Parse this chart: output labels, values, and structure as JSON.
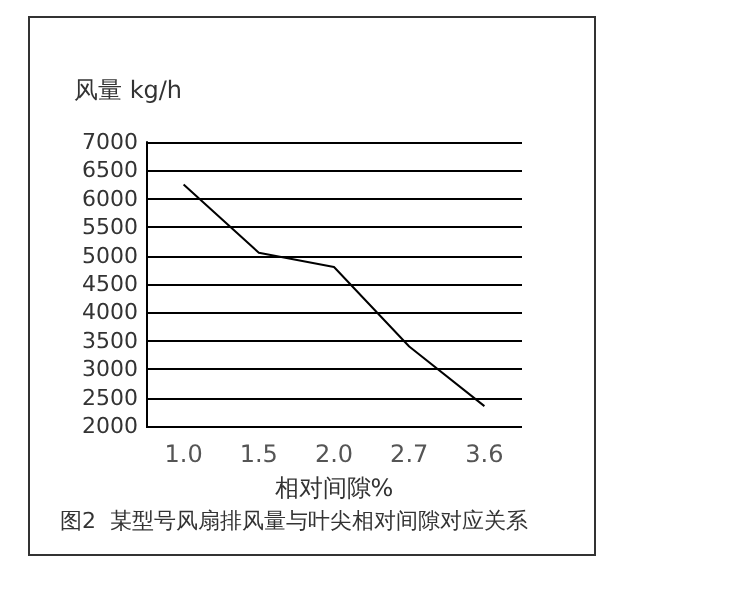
{
  "chart_data": {
    "type": "line",
    "title": "图2  某型号风扇排风量与叶尖相对间隙对应关系",
    "ylabel": "风量 kg/h",
    "xlabel": "相对间隙%",
    "categories": [
      "1.0",
      "1.5",
      "2.0",
      "2.7",
      "3.6"
    ],
    "series": [
      {
        "color": "#000000",
        "values": [
          6250,
          5050,
          4800,
          3400,
          2350
        ]
      }
    ],
    "ylim": [
      2000,
      7000
    ],
    "yticks": [
      2000,
      2500,
      3000,
      3500,
      4000,
      4500,
      5000,
      5500,
      6000,
      6500,
      7000
    ],
    "grid": "y",
    "marker": "none",
    "line_style": "solid"
  }
}
